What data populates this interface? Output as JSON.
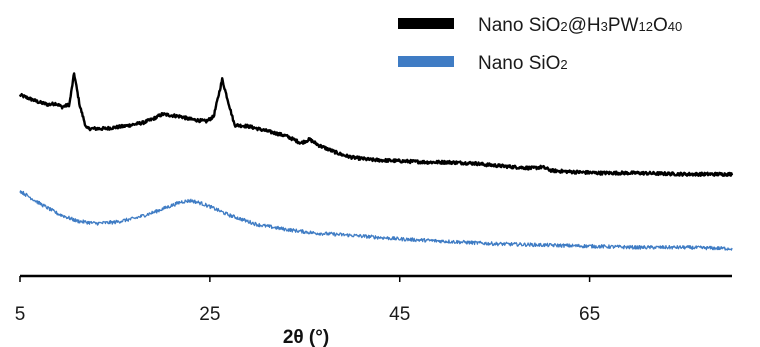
{
  "chart_data": {
    "type": "line",
    "title": "",
    "xlabel": "2θ (°)",
    "ylabel": "",
    "xlim": [
      5,
      80
    ],
    "xticks": [
      5,
      25,
      45,
      65
    ],
    "grid": false,
    "legend_position": "top-right",
    "series": [
      {
        "name": "Nano SiO2@H3PW12O40",
        "legend_parts": [
          {
            "t": "Nano SiO",
            "sub": false
          },
          {
            "t": "2",
            "sub": true
          },
          {
            "t": "@H",
            "sub": false
          },
          {
            "t": "3",
            "sub": true
          },
          {
            "t": "PW",
            "sub": false
          },
          {
            "t": "12",
            "sub": true
          },
          {
            "t": "O",
            "sub": false
          },
          {
            "t": "40",
            "sub": true
          }
        ],
        "color": "#000000",
        "x": [
          5,
          6,
          7,
          8,
          8.8,
          9.4,
          10.2,
          10.7,
          11.3,
          12,
          14,
          16,
          18,
          19,
          20,
          21,
          22,
          22.8,
          23.7,
          24.6,
          25.4,
          26.3,
          27.6,
          29,
          30,
          31,
          33,
          34.6,
          35.5,
          36.5,
          38,
          39,
          40,
          42,
          45,
          48,
          50,
          53,
          54,
          55.5,
          57,
          59,
          60,
          61,
          63,
          66,
          70,
          75,
          80
        ],
        "y": [
          100,
          97,
          94,
          92,
          93,
          90,
          92,
          118,
          91,
          72,
          72,
          74,
          77,
          80,
          84,
          83,
          82,
          80,
          79,
          78,
          82,
          113,
          75,
          74,
          72,
          70,
          66,
          60,
          63,
          58,
          53,
          50,
          48,
          46,
          45,
          44,
          44,
          43,
          42,
          41,
          40,
          39,
          40,
          37,
          36,
          35,
          35,
          34,
          34
        ]
      },
      {
        "name": "Nano SiO2",
        "legend_parts": [
          {
            "t": "Nano SiO",
            "sub": false
          },
          {
            "t": "2",
            "sub": true
          }
        ],
        "color": "#3f7cc4",
        "x": [
          5,
          7,
          9,
          11,
          13,
          15,
          17,
          19,
          21,
          22,
          23,
          24,
          25,
          27,
          30,
          33,
          36,
          40,
          45,
          50,
          55,
          60,
          65,
          70,
          75,
          80
        ],
        "y": [
          20,
          10,
          1,
          -5,
          -7,
          -6,
          -3,
          2,
          8,
          11,
          12,
          10,
          7,
          0,
          -8,
          -12,
          -15,
          -17,
          -20,
          -22,
          -24,
          -25,
          -26,
          -27,
          -27,
          -28
        ]
      }
    ]
  }
}
